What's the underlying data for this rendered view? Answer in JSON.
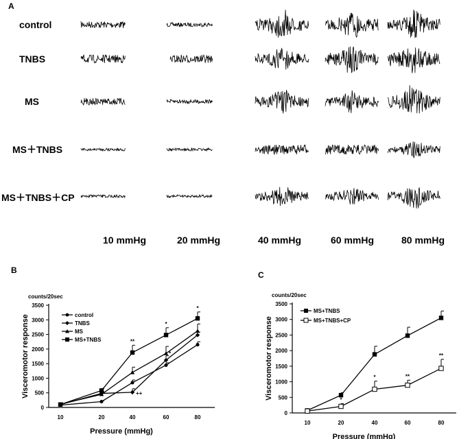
{
  "panel_a": {
    "label": "A",
    "rows": [
      "control",
      "TNBS",
      "MS",
      "MS＋TNBS",
      "MS＋TNBS＋CP"
    ],
    "columns": [
      "10 mmHg",
      "20 mmHg",
      "40 mmHg",
      "60 mmHg",
      "80 mmHg"
    ]
  },
  "chart_data": [
    {
      "panel": "B",
      "type": "line",
      "unit_label": "counts/20sec",
      "xlabel": "Pressure (mmHg)",
      "ylabel": "Visceromotor response",
      "categories": [
        "10",
        "20",
        "40",
        "60",
        "80"
      ],
      "ylim": [
        0,
        3500
      ],
      "yticks": [
        "0",
        "500",
        "1000",
        "1500",
        "2000",
        "2500",
        "3000",
        "3500"
      ],
      "legend_position": "top-left",
      "series": [
        {
          "name": "control",
          "marker": "circle",
          "values": [
            80,
            200,
            850,
            1450,
            2150
          ],
          "errors": [
            40,
            30,
            90,
            80,
            100
          ]
        },
        {
          "name": "TNBS",
          "marker": "diamond",
          "values": [
            100,
            480,
            520,
            1620,
            2480
          ],
          "errors": [
            40,
            60,
            120,
            150,
            100
          ]
        },
        {
          "name": "MS",
          "marker": "triangle",
          "values": [
            110,
            450,
            1200,
            1850,
            2620
          ],
          "errors": [
            50,
            80,
            180,
            240,
            240
          ]
        },
        {
          "name": "MS+TNBS",
          "marker": "square",
          "values": [
            100,
            580,
            1880,
            2480,
            3050
          ],
          "errors": [
            50,
            70,
            250,
            250,
            220
          ]
        }
      ],
      "annotations": [
        {
          "text": "**",
          "series": "MS+TNBS",
          "x": "40"
        },
        {
          "text": "*",
          "series": "MS+TNBS",
          "x": "60"
        },
        {
          "text": "*",
          "series": "MS+TNBS",
          "x": "80"
        },
        {
          "text": "++",
          "series": "TNBS",
          "x": "40"
        },
        {
          "text": "*",
          "series": "MS",
          "x": "60"
        }
      ]
    },
    {
      "panel": "C",
      "type": "line",
      "unit_label": "counts/20sec",
      "xlabel": "Pressure (mmHg)",
      "ylabel": "Visceromotor response",
      "categories": [
        "10",
        "20",
        "40",
        "60",
        "80"
      ],
      "ylim": [
        0,
        3500
      ],
      "yticks": [
        "0",
        "500",
        "1000",
        "1500",
        "2000",
        "2500",
        "3000",
        "3500"
      ],
      "legend_position": "top-left",
      "series": [
        {
          "name": "MS+TNBS",
          "marker": "square",
          "values": [
            80,
            570,
            1880,
            2480,
            3050
          ],
          "errors": [
            30,
            80,
            260,
            270,
            220
          ]
        },
        {
          "name": "MS+TNBS+CP",
          "marker": "open-square",
          "values": [
            60,
            210,
            760,
            890,
            1430
          ],
          "errors": [
            30,
            90,
            260,
            160,
            290
          ]
        }
      ],
      "annotations": [
        {
          "text": "*",
          "series": "MS+TNBS+CP",
          "x": "20"
        },
        {
          "text": "*",
          "series": "MS+TNBS+CP",
          "x": "40"
        },
        {
          "text": "**",
          "series": "MS+TNBS+CP",
          "x": "60"
        },
        {
          "text": "**",
          "series": "MS+TNBS+CP",
          "x": "80"
        }
      ]
    }
  ]
}
